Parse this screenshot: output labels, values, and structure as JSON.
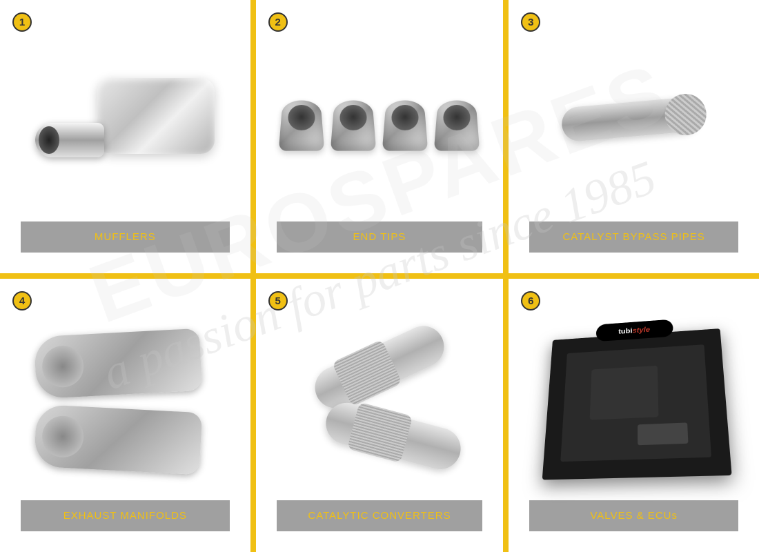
{
  "grid": {
    "divider_color": "#f0c014",
    "badge_bg": "#f0c014",
    "badge_border": "#333333",
    "label_bg": "rgba(128,128,128,0.75)",
    "label_text_color": "#f0c014"
  },
  "watermark": {
    "tagline": "a passion for parts since 1985",
    "brand": "EUROSPARES"
  },
  "items": [
    {
      "num": "1",
      "label": "MUFFLERS"
    },
    {
      "num": "2",
      "label": "END TIPS"
    },
    {
      "num": "3",
      "label": "CATALYST BYPASS PIPES"
    },
    {
      "num": "4",
      "label": "EXHAUST MANIFOLDS"
    },
    {
      "num": "5",
      "label": "CATALYTIC CONVERTERS"
    },
    {
      "num": "6",
      "label": "VALVES & ECUs"
    }
  ],
  "ecu": {
    "logo_text": "tubi",
    "logo_style": "style"
  }
}
